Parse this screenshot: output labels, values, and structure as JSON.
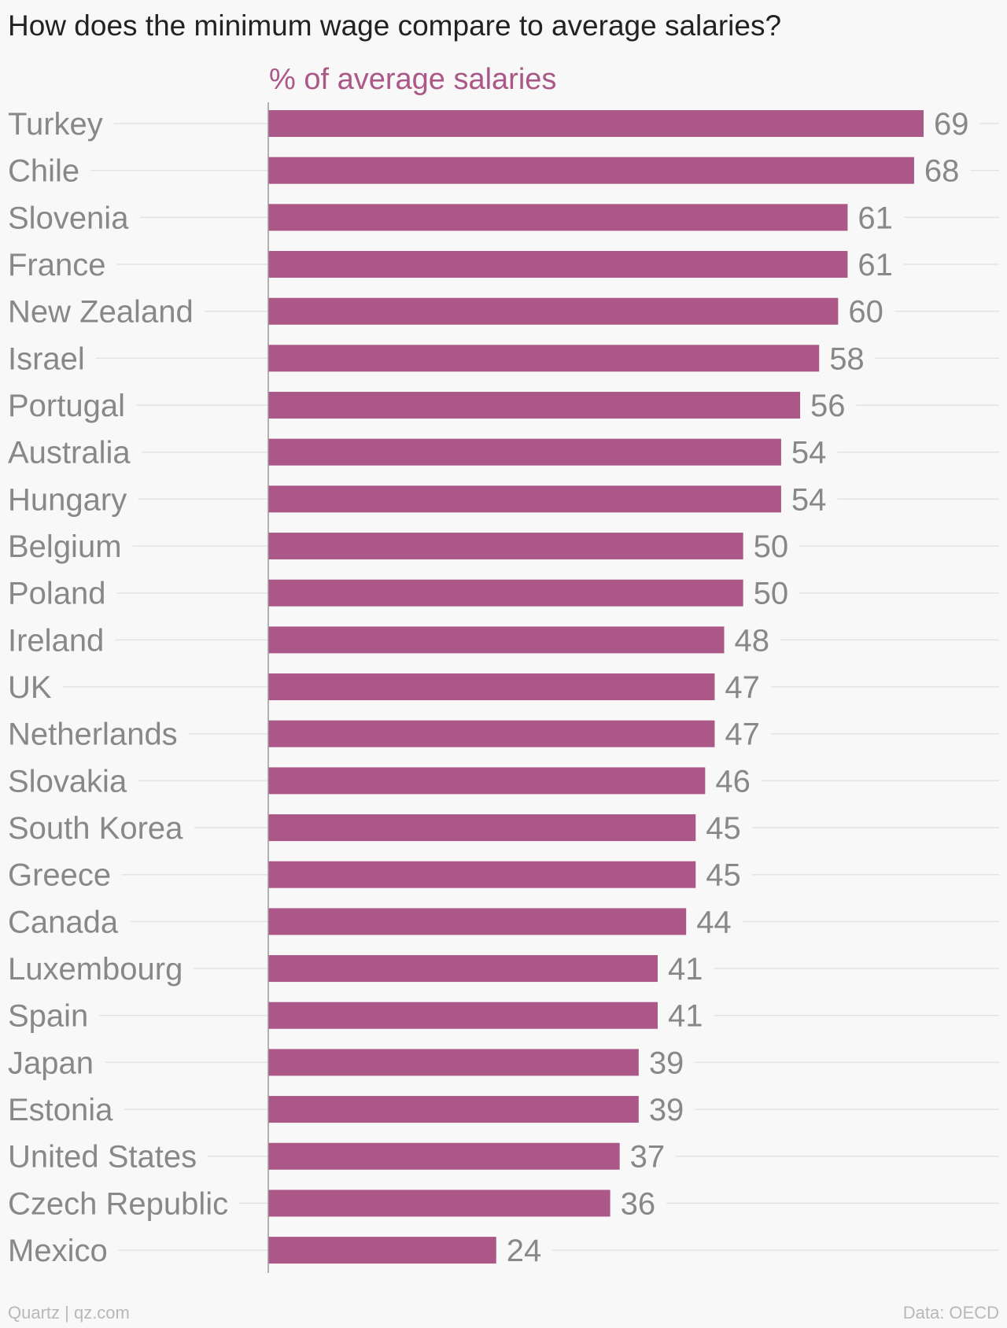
{
  "chart_data": {
    "type": "bar",
    "orientation": "horizontal",
    "title": "How does the minimum wage compare to average salaries?",
    "series_label": "% of average salaries",
    "categories": [
      "Turkey",
      "Chile",
      "Slovenia",
      "France",
      "New Zealand",
      "Israel",
      "Portugal",
      "Australia",
      "Hungary",
      "Belgium",
      "Poland",
      "Ireland",
      "UK",
      "Netherlands",
      "Slovakia",
      "South Korea",
      "Greece",
      "Canada",
      "Luxembourg",
      "Spain",
      "Japan",
      "Estonia",
      "United States",
      "Czech Republic",
      "Mexico"
    ],
    "values": [
      69,
      68,
      61,
      61,
      60,
      58,
      56,
      54,
      54,
      50,
      50,
      48,
      47,
      47,
      46,
      45,
      45,
      44,
      41,
      41,
      39,
      39,
      37,
      36,
      24
    ],
    "xlim": [
      0,
      69
    ],
    "grid": true,
    "bar_color": "#ab5787",
    "label_color": "#888888",
    "grid_color": "#e3e3e3",
    "axis_color": "#999999"
  },
  "footer": {
    "source_left": "Quartz | qz.com",
    "source_right": "Data: OECD"
  }
}
